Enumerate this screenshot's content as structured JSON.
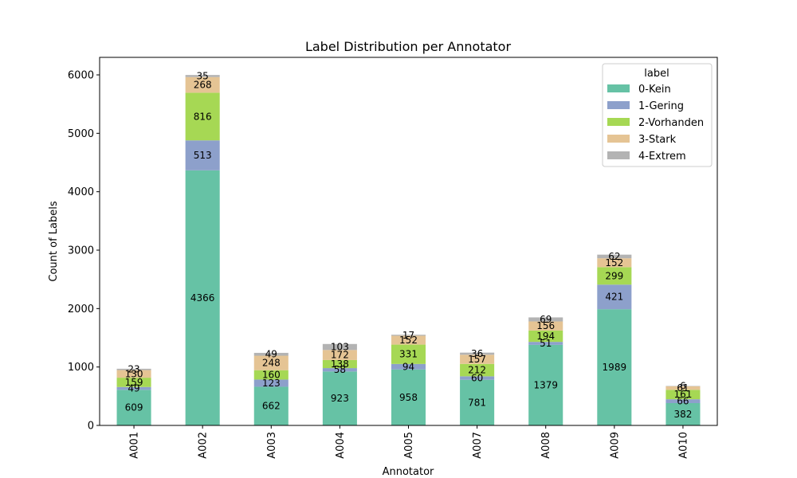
{
  "chart_data": {
    "type": "bar",
    "stacked": true,
    "title": "Label Distribution per Annotator",
    "xlabel": "Annotator",
    "ylabel": "Count of Labels",
    "ylim": [
      0,
      6300
    ],
    "yticks": [
      0,
      1000,
      2000,
      3000,
      4000,
      5000,
      6000
    ],
    "categories": [
      "A001",
      "A002",
      "A003",
      "A004",
      "A005",
      "A007",
      "A008",
      "A009",
      "A010"
    ],
    "series": [
      {
        "name": "0-Kein",
        "color": "#66c2a5",
        "values": [
          609,
          4366,
          662,
          923,
          958,
          781,
          1379,
          1989,
          382
        ]
      },
      {
        "name": "1-Gering",
        "color": "#8da0cb",
        "values": [
          49,
          513,
          123,
          58,
          94,
          60,
          51,
          421,
          66
        ]
      },
      {
        "name": "2-Vorhanden",
        "color": "#a6d854",
        "values": [
          159,
          816,
          160,
          138,
          331,
          212,
          194,
          299,
          161
        ]
      },
      {
        "name": "3-Stark",
        "color": "#e5c494",
        "values": [
          130,
          268,
          248,
          172,
          152,
          157,
          156,
          152,
          61
        ]
      },
      {
        "name": "4-Extrem",
        "color": "#b3b3b3",
        "values": [
          23,
          35,
          49,
          103,
          17,
          36,
          69,
          62,
          6
        ]
      }
    ],
    "legend": {
      "title": "label",
      "position": "top-right"
    },
    "grid": false
  }
}
